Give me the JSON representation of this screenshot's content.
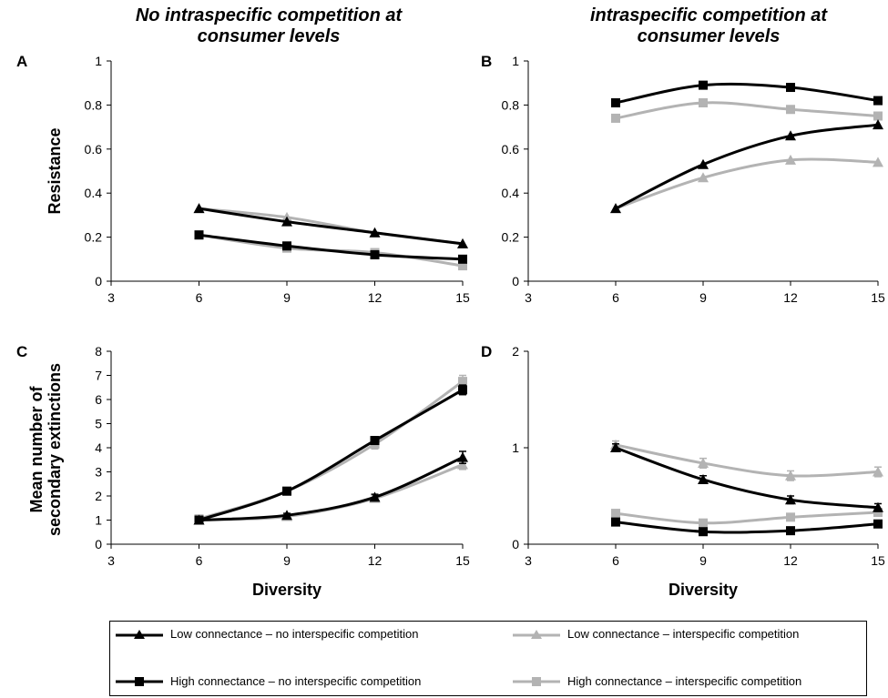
{
  "column_titles": {
    "left": "No intraspecific competition at consumer levels",
    "right": "intraspecific competition at consumer levels"
  },
  "colors": {
    "black": "#000000",
    "grey": "#b3b3b3"
  },
  "legend": [
    {
      "label": "Low connectance – no interspecific competition",
      "color": "#000000",
      "marker": "triangle"
    },
    {
      "label": "High connectance – no interspecific competition",
      "color": "#000000",
      "marker": "square"
    },
    {
      "label": "Low connectance – interspecific competition",
      "color": "#b3b3b3",
      "marker": "triangle"
    },
    {
      "label": "High connectance – interspecific competition",
      "color": "#b3b3b3",
      "marker": "square"
    }
  ],
  "chart_data": [
    {
      "panel": "A",
      "type": "line",
      "title": "",
      "xlabel": "",
      "ylabel": "Resistance",
      "x": [
        6,
        9,
        12,
        15
      ],
      "xlim": [
        3,
        15
      ],
      "xticks": [
        "3",
        "6",
        "9",
        "12",
        "15"
      ],
      "ylim": [
        0,
        1
      ],
      "yticks": [
        "0",
        "0.2",
        "0.4",
        "0.6",
        "0.8",
        "1"
      ],
      "grid": false,
      "series": [
        {
          "name": "Low connectance – no interspecific competition",
          "values": [
            0.33,
            0.27,
            0.22,
            0.17
          ]
        },
        {
          "name": "High connectance – no interspecific competition",
          "values": [
            0.21,
            0.16,
            0.12,
            0.1
          ]
        },
        {
          "name": "Low connectance – interspecific competition",
          "values": [
            0.33,
            0.29,
            0.22,
            0.17
          ]
        },
        {
          "name": "High connectance – interspecific competition",
          "values": [
            0.21,
            0.15,
            0.13,
            0.07
          ]
        }
      ]
    },
    {
      "panel": "B",
      "type": "line",
      "title": "",
      "xlabel": "",
      "ylabel": "",
      "x": [
        6,
        9,
        12,
        15
      ],
      "xlim": [
        3,
        15
      ],
      "xticks": [
        "3",
        "6",
        "9",
        "12",
        "15"
      ],
      "ylim": [
        0,
        1
      ],
      "yticks": [
        "0",
        "0.2",
        "0.4",
        "0.6",
        "0.8",
        "1"
      ],
      "grid": false,
      "series": [
        {
          "name": "Low connectance – no interspecific competition",
          "values": [
            0.33,
            0.53,
            0.66,
            0.71
          ]
        },
        {
          "name": "High connectance – no interspecific competition",
          "values": [
            0.81,
            0.89,
            0.88,
            0.82
          ]
        },
        {
          "name": "Low connectance – interspecific competition",
          "values": [
            0.33,
            0.47,
            0.55,
            0.54
          ]
        },
        {
          "name": "High connectance – interspecific competition",
          "values": [
            0.74,
            0.81,
            0.78,
            0.75
          ]
        }
      ]
    },
    {
      "panel": "C",
      "type": "line",
      "title": "",
      "xlabel": "Diversity",
      "ylabel": "Mean number of secondary extinctions",
      "x": [
        6,
        9,
        12,
        15
      ],
      "xlim": [
        3,
        15
      ],
      "xticks": [
        "3",
        "6",
        "9",
        "12",
        "15"
      ],
      "ylim": [
        0,
        8
      ],
      "yticks": [
        "0",
        "1",
        "2",
        "3",
        "4",
        "5",
        "6",
        "7",
        "8"
      ],
      "grid": false,
      "series": [
        {
          "name": "Low connectance – no interspecific competition",
          "values": [
            1.0,
            1.2,
            1.95,
            3.6
          ],
          "error": [
            0.05,
            0.08,
            0.12,
            0.25
          ]
        },
        {
          "name": "High connectance – no interspecific competition",
          "values": [
            1.0,
            2.2,
            4.3,
            6.4
          ],
          "error": [
            0.05,
            0.08,
            0.15,
            0.2
          ]
        },
        {
          "name": "Low connectance – interspecific competition",
          "values": [
            1.0,
            1.15,
            1.9,
            3.3
          ],
          "error": [
            0.05,
            0.08,
            0.12,
            0.2
          ]
        },
        {
          "name": "High connectance – interspecific competition",
          "values": [
            1.05,
            2.2,
            4.15,
            6.75
          ],
          "error": [
            0.05,
            0.08,
            0.2,
            0.25
          ]
        }
      ]
    },
    {
      "panel": "D",
      "type": "line",
      "title": "",
      "xlabel": "Diversity",
      "ylabel": "",
      "x": [
        6,
        9,
        12,
        15
      ],
      "xlim": [
        3,
        15
      ],
      "xticks": [
        "3",
        "6",
        "9",
        "12",
        "15"
      ],
      "ylim": [
        0,
        2
      ],
      "yticks": [
        "0",
        "1",
        "2"
      ],
      "grid": false,
      "series": [
        {
          "name": "Low connectance – no interspecific competition",
          "values": [
            1.0,
            0.67,
            0.46,
            0.38
          ],
          "error": [
            0.04,
            0.04,
            0.04,
            0.04
          ]
        },
        {
          "name": "High connectance – no interspecific competition",
          "values": [
            0.23,
            0.13,
            0.14,
            0.21
          ],
          "error": [
            0.03,
            0.03,
            0.03,
            0.03
          ]
        },
        {
          "name": "Low connectance – interspecific competition",
          "values": [
            1.03,
            0.84,
            0.71,
            0.75
          ],
          "error": [
            0.04,
            0.05,
            0.05,
            0.05
          ]
        },
        {
          "name": "High connectance – interspecific competition",
          "values": [
            0.32,
            0.22,
            0.28,
            0.33
          ],
          "error": [
            0.03,
            0.03,
            0.03,
            0.03
          ]
        }
      ]
    }
  ]
}
